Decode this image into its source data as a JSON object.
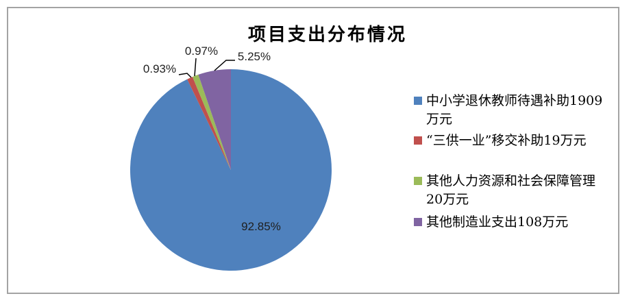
{
  "chart_data": {
    "type": "pie",
    "title": "项目支出分布情况",
    "unit": "万元",
    "legend_position": "right",
    "slices": [
      {
        "name": "中小学退休教师待遇补助",
        "legend_label": "中小学退休教师待遇补助1909万元",
        "value": 1909,
        "pct": 92.85,
        "pct_label": "92.85%",
        "color": "#4F81BD"
      },
      {
        "name": "“三供一业”移交补助",
        "legend_label": "“三供一业”移交补助19万元",
        "value": 19,
        "pct": 0.93,
        "pct_label": "0.93%",
        "color": "#C0504D"
      },
      {
        "name": "其他人力资源和社会保障管理",
        "legend_label": "其他人力资源和社会保障管理20万元",
        "value": 20,
        "pct": 0.97,
        "pct_label": "0.97%",
        "color": "#9BBB59"
      },
      {
        "name": "其他制造业支出",
        "legend_label": "其他制造业支出108万元",
        "value": 108,
        "pct": 5.25,
        "pct_label": "5.25%",
        "color": "#8064A2"
      }
    ]
  },
  "frame": {
    "border_color": "#A3A3A3",
    "background": "#FFFFFF",
    "leader_line_color": "#000000"
  }
}
